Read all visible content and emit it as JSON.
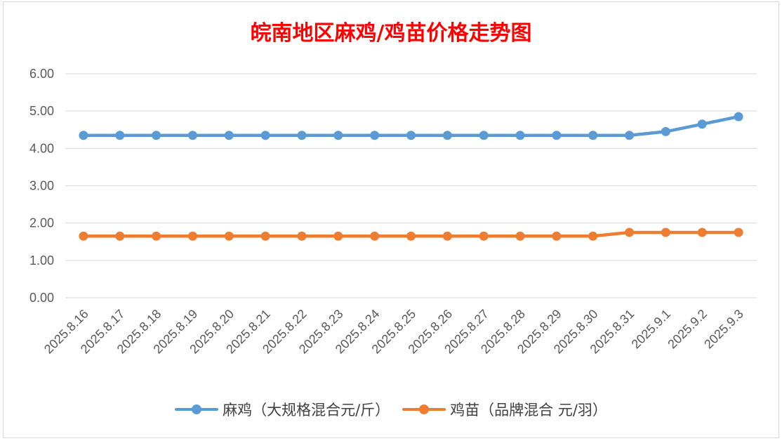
{
  "chart_data": {
    "type": "line",
    "title": "皖南地区麻鸡/鸡苗价格走势图",
    "categories": [
      "2025.8.16",
      "2025.8.17",
      "2025.8.18",
      "2025.8.19",
      "2025.8.20",
      "2025.8.21",
      "2025.8.22",
      "2025.8.23",
      "2025.8.24",
      "2025.8.25",
      "2025.8.26",
      "2025.8.27",
      "2025.8.28",
      "2025.8.29",
      "2025.8.30",
      "2025.8.31",
      "2025.9.1",
      "2025.9.2",
      "2025.9.3"
    ],
    "y_ticks": [
      "0.00",
      "1.00",
      "2.00",
      "3.00",
      "4.00",
      "5.00",
      "6.00"
    ],
    "ylim": [
      0,
      6
    ],
    "grid": true,
    "legend_position": "bottom",
    "series": [
      {
        "name": "麻鸡（大规格混合元/斤）",
        "color": "#5b9bd5",
        "values": [
          4.35,
          4.35,
          4.35,
          4.35,
          4.35,
          4.35,
          4.35,
          4.35,
          4.35,
          4.35,
          4.35,
          4.35,
          4.35,
          4.35,
          4.35,
          4.35,
          4.45,
          4.65,
          4.85
        ]
      },
      {
        "name": "鸡苗（品牌混合 元/羽）",
        "color": "#ed7d31",
        "values": [
          1.65,
          1.65,
          1.65,
          1.65,
          1.65,
          1.65,
          1.65,
          1.65,
          1.65,
          1.65,
          1.65,
          1.65,
          1.65,
          1.65,
          1.65,
          1.75,
          1.75,
          1.75,
          1.75
        ]
      }
    ]
  }
}
